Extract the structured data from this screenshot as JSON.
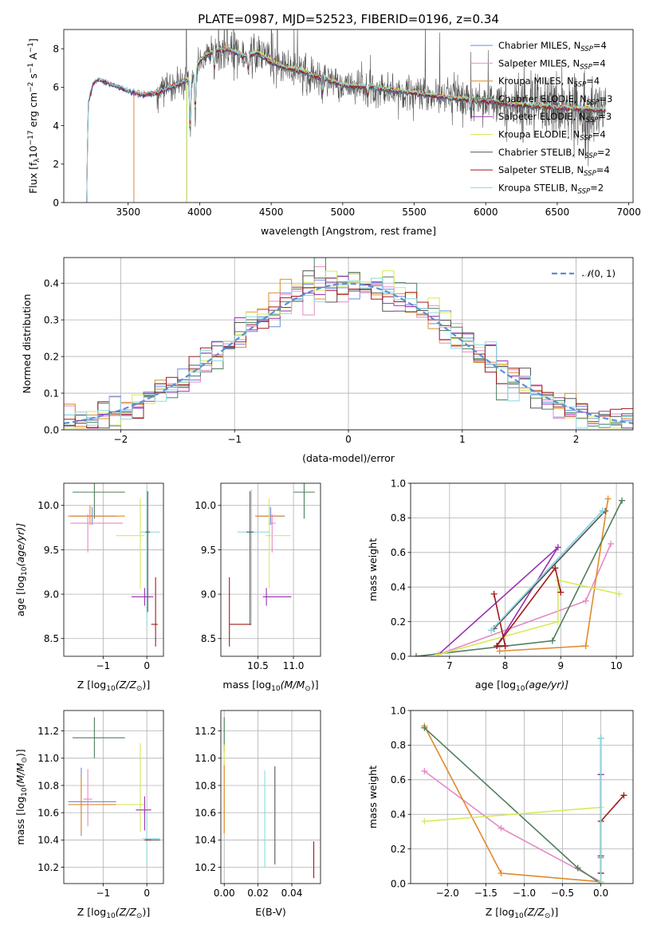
{
  "figure": {
    "title": "PLATE=0987, MJD=52523, FIBERID=0196, z=0.34"
  },
  "colors": {
    "Chabrier MILES": "#6a8bdf",
    "Salpeter MILES": "#e58ac5",
    "Kroupa MILES": "#e08a2c",
    "Chabrier ELODIE": "#4f7f5a",
    "Salpeter ELODIE": "#9b30b0",
    "Kroupa ELODIE": "#d6ea5a",
    "Chabrier STELIB": "#555555",
    "Salpeter STELIB": "#a11a1a",
    "Kroupa STELIB": "#8adbe0"
  },
  "chart_data": [
    {
      "id": "spectrum",
      "type": "line",
      "title": "PLATE=0987, MJD=52523, FIBERID=0196, z=0.34",
      "xlabel": "wavelength [Angstrom, rest frame]",
      "ylabel_parts": [
        "Flux [f",
        "λ",
        "10",
        "−17",
        " erg cm",
        "−2",
        " s",
        "−1",
        " A",
        "−1",
        "]"
      ],
      "xlim": [
        3050,
        7030
      ],
      "ylim": [
        0,
        9
      ],
      "xticks": [
        3500,
        4000,
        4500,
        5000,
        5500,
        6000,
        6500,
        7000
      ],
      "yticks": [
        0,
        2,
        4,
        6,
        8
      ],
      "legend_position": "upper-right",
      "legend": [
        {
          "label": "Chabrier MILES, N",
          "sub": "SSP",
          "tail": "=4",
          "key": "Chabrier MILES"
        },
        {
          "label": "Salpeter MILES, N",
          "sub": "SSP",
          "tail": "=4",
          "key": "Salpeter MILES"
        },
        {
          "label": "Kroupa MILES, N",
          "sub": "SSP",
          "tail": "=4",
          "key": "Kroupa MILES"
        },
        {
          "label": "Chabrier ELODIE, N",
          "sub": "SSP",
          "tail": "=3",
          "key": "Chabrier ELODIE"
        },
        {
          "label": "Salpeter ELODIE, N",
          "sub": "SSP",
          "tail": "=3",
          "key": "Salpeter ELODIE"
        },
        {
          "label": "Kroupa ELODIE, N",
          "sub": "SSP",
          "tail": "=4",
          "key": "Kroupa ELODIE"
        },
        {
          "label": "Chabrier STELIB, N",
          "sub": "SSP",
          "tail": "=2",
          "key": "Chabrier STELIB"
        },
        {
          "label": "Salpeter STELIB, N",
          "sub": "SSP",
          "tail": "=4",
          "key": "Salpeter STELIB"
        },
        {
          "label": "Kroupa STELIB, N",
          "sub": "SSP",
          "tail": "=2",
          "key": "Kroupa STELIB"
        }
      ],
      "data_range_x": [
        3210,
        6840
      ],
      "continuum_knots": [
        [
          3210,
          0
        ],
        [
          3220,
          5.2
        ],
        [
          3260,
          6.3
        ],
        [
          3300,
          6.4
        ],
        [
          3400,
          6.1
        ],
        [
          3500,
          5.8
        ],
        [
          3600,
          5.6
        ],
        [
          3700,
          5.7
        ],
        [
          3800,
          6.0
        ],
        [
          3900,
          6.3
        ],
        [
          3950,
          6.6
        ],
        [
          4000,
          7.4
        ],
        [
          4100,
          7.9
        ],
        [
          4200,
          8.0
        ],
        [
          4300,
          7.6
        ],
        [
          4400,
          7.8
        ],
        [
          4500,
          7.3
        ],
        [
          4600,
          7.0
        ],
        [
          4700,
          6.9
        ],
        [
          4800,
          6.6
        ],
        [
          4900,
          6.4
        ],
        [
          5000,
          6.1
        ],
        [
          5200,
          6.0
        ],
        [
          5400,
          5.8
        ],
        [
          5600,
          5.6
        ],
        [
          5800,
          5.4
        ],
        [
          6000,
          5.3
        ],
        [
          6200,
          5.1
        ],
        [
          6400,
          5.0
        ],
        [
          6600,
          4.9
        ],
        [
          6840,
          4.8
        ]
      ],
      "absorption_lines": [
        [
          3934,
          3.3
        ],
        [
          3969,
          2.7
        ],
        [
          4102,
          1.2
        ],
        [
          4340,
          1.0
        ],
        [
          4861,
          0.9
        ],
        [
          5175,
          0.6
        ],
        [
          5893,
          0.5
        ]
      ],
      "model_start_x": {
        "Salpeter MILES": 3540,
        "Kroupa MILES": 3540,
        "Chabrier ELODIE": 3910,
        "Kroupa ELODIE": 3910
      }
    },
    {
      "id": "residuals",
      "type": "histogram",
      "xlabel": "(data-model)/error",
      "ylabel": "Normed distribution",
      "xlim": [
        -2.5,
        2.5
      ],
      "ylim": [
        0,
        0.47
      ],
      "xticks": [
        -2,
        -1,
        0,
        1,
        2
      ],
      "yticks": [
        0.0,
        0.1,
        0.2,
        0.3,
        0.4
      ],
      "legend_position": "upper-right",
      "legend_pre": "𝒩",
      "legend_text": "(0, 1)",
      "bin_width": 0.1,
      "gaussian": {
        "mu": 0,
        "sigma": 1,
        "color": "#5b8fd6"
      }
    },
    {
      "id": "age-vs-Z",
      "type": "errorbar",
      "xlabel_pre": "Z [log",
      "xlabel_sub": "10",
      "xlabel_post": "(Z/Z",
      "xlabel_end": ")]",
      "ylabel_pre": "age  [log",
      "ylabel_sub": "10",
      "ylabel_post": "(age/yr)]",
      "xlim": [
        -1.9,
        0.38
      ],
      "ylim": [
        8.3,
        10.25
      ],
      "xticks": [
        -1,
        0
      ],
      "yticks": [
        8.5,
        9.0,
        9.5,
        10.0
      ],
      "points": [
        {
          "key": "Chabrier ELODIE",
          "x": -1.2,
          "xerr": [
            0.5,
            0.7
          ],
          "y": 10.15,
          "yerr": [
            0.3,
            0.1
          ]
        },
        {
          "key": "Chabrier MILES",
          "x": -1.25,
          "xerr": [
            0.5,
            0.55
          ],
          "y": 9.88,
          "yerr": [
            0.1,
            0.1
          ]
        },
        {
          "key": "Kroupa MILES",
          "x": -1.3,
          "xerr": [
            0.5,
            0.8
          ],
          "y": 9.88,
          "yerr": [
            0.1,
            0.12
          ]
        },
        {
          "key": "Salpeter MILES",
          "x": -1.35,
          "xerr": [
            0.4,
            0.8
          ],
          "y": 9.8,
          "yerr": [
            0.33,
            0.1
          ]
        },
        {
          "key": "Kroupa ELODIE",
          "x": -0.15,
          "xerr": [
            0.55,
            0.1
          ],
          "y": 9.66,
          "yerr": [
            0.6,
            0.42
          ]
        },
        {
          "key": "Kroupa STELIB",
          "x": 0.0,
          "xerr": [
            0.15,
            0.3
          ],
          "y": 9.7,
          "yerr": [
            1.05,
            0.48
          ]
        },
        {
          "key": "Chabrier STELIB",
          "x": 0.02,
          "xerr": [
            0.05,
            0.05
          ],
          "y": 9.7,
          "yerr": [
            0.9,
            0.46
          ]
        },
        {
          "key": "Salpeter ELODIE",
          "x": -0.05,
          "xerr": [
            0.3,
            0.2
          ],
          "y": 8.97,
          "yerr": [
            0.1,
            0.1
          ]
        },
        {
          "key": "Salpeter STELIB",
          "x": 0.2,
          "xerr": [
            0.1,
            0.05
          ],
          "y": 8.66,
          "yerr": [
            0.25,
            0.53
          ]
        }
      ]
    },
    {
      "id": "age-vs-mass",
      "type": "errorbar",
      "xlabel_pre": "mass [log",
      "xlabel_sub": "10",
      "xlabel_post": "(M/M",
      "xlabel_end": ")]",
      "xlim": [
        9.98,
        11.38
      ],
      "ylim": [
        8.3,
        10.25
      ],
      "xticks": [
        10.5,
        11.0
      ],
      "yticks": [
        8.5,
        9.0,
        9.5,
        10.0
      ],
      "points": [
        {
          "key": "Chabrier ELODIE",
          "x": 11.15,
          "xerr": [
            0.15,
            0.15
          ],
          "y": 10.15,
          "yerr": [
            0.3,
            0.1
          ]
        },
        {
          "key": "Chabrier MILES",
          "x": 10.68,
          "xerr": [
            0.2,
            0.2
          ],
          "y": 9.88,
          "yerr": [
            0.1,
            0.1
          ]
        },
        {
          "key": "Kroupa MILES",
          "x": 10.66,
          "xerr": [
            0.2,
            0.2
          ],
          "y": 9.88,
          "yerr": [
            0.1,
            0.12
          ]
        },
        {
          "key": "Salpeter MILES",
          "x": 10.7,
          "xerr": [
            0.05,
            0.05
          ],
          "y": 9.8,
          "yerr": [
            0.33,
            0.1
          ]
        },
        {
          "key": "Kroupa ELODIE",
          "x": 10.66,
          "xerr": [
            0.05,
            0.3
          ],
          "y": 9.66,
          "yerr": [
            0.6,
            0.42
          ]
        },
        {
          "key": "Kroupa STELIB",
          "x": 10.41,
          "xerr": [
            0.2,
            0.25
          ],
          "y": 9.7,
          "yerr": [
            1.05,
            0.48
          ]
        },
        {
          "key": "Chabrier STELIB",
          "x": 10.39,
          "xerr": [
            0.05,
            0.05
          ],
          "y": 9.7,
          "yerr": [
            1.05,
            0.46
          ]
        },
        {
          "key": "Salpeter ELODIE",
          "x": 10.62,
          "xerr": [
            0.05,
            0.35
          ],
          "y": 8.97,
          "yerr": [
            0.1,
            0.1
          ]
        },
        {
          "key": "Salpeter STELIB",
          "x": 10.1,
          "xerr": [
            0.0,
            0.3
          ],
          "y": 8.66,
          "yerr": [
            0.25,
            0.53
          ]
        }
      ]
    },
    {
      "id": "massweight-vs-age",
      "type": "line",
      "xlabel_pre": "age  [log",
      "xlabel_sub": "10",
      "xlabel_post": "(age/yr)]",
      "ylabel": "mass weight",
      "xlim": [
        6.3,
        10.3
      ],
      "ylim": [
        0,
        1
      ],
      "xticks": [
        7,
        8,
        9,
        10
      ],
      "yticks": [
        0.0,
        0.2,
        0.4,
        0.6,
        0.8,
        1.0
      ],
      "series": [
        {
          "key": "Chabrier MILES",
          "x": [
            7.75,
            9.75
          ],
          "y": [
            0.15,
            0.84
          ]
        },
        {
          "key": "Salpeter MILES",
          "x": [
            6.8,
            9.45,
            9.9
          ],
          "y": [
            0.01,
            0.32,
            0.65
          ]
        },
        {
          "key": "Kroupa MILES",
          "x": [
            7.9,
            9.45,
            9.85
          ],
          "y": [
            0.03,
            0.06,
            0.91
          ]
        },
        {
          "key": "Chabrier ELODIE",
          "x": [
            6.4,
            8.85,
            10.1
          ],
          "y": [
            0.0,
            0.09,
            0.9
          ]
        },
        {
          "key": "Salpeter ELODIE",
          "x": [
            6.8,
            8.95,
            7.85,
            8.0
          ],
          "y": [
            0.01,
            0.63,
            0.06,
            0.06
          ]
        },
        {
          "key": "Kroupa ELODIE",
          "x": [
            6.8,
            8.95,
            8.95,
            10.05
          ],
          "y": [
            0.01,
            0.2,
            0.44,
            0.36
          ]
        },
        {
          "key": "Chabrier STELIB",
          "x": [
            7.8,
            9.8
          ],
          "y": [
            0.16,
            0.84
          ]
        },
        {
          "key": "Salpeter STELIB",
          "x": [
            7.8,
            8.0,
            7.85,
            8.9,
            9.0
          ],
          "y": [
            0.36,
            0.06,
            0.06,
            0.51,
            0.37
          ]
        },
        {
          "key": "Kroupa STELIB",
          "x": [
            7.75,
            9.75
          ],
          "y": [
            0.15,
            0.84
          ]
        }
      ]
    },
    {
      "id": "mass-vs-Z",
      "type": "errorbar",
      "xlabel_pre": "Z [log",
      "xlabel_sub": "10",
      "xlabel_post": "(Z/Z",
      "xlabel_end": ")]",
      "ylabel_pre": "mass [log",
      "ylabel_sub": "10",
      "ylabel_post": "(M/M",
      "ylabel_end": ")]",
      "xlim": [
        -1.9,
        0.38
      ],
      "ylim": [
        10.08,
        11.35
      ],
      "xticks": [
        -1,
        0
      ],
      "yticks": [
        10.2,
        10.4,
        10.6,
        10.8,
        11.0,
        11.2
      ],
      "points": [
        {
          "key": "Chabrier ELODIE",
          "x": -1.2,
          "xerr": [
            0.5,
            0.7
          ],
          "y": 11.15,
          "yerr": [
            0.15,
            0.15
          ]
        },
        {
          "key": "Chabrier MILES",
          "x": -1.5,
          "xerr": [
            0.3,
            0.8
          ],
          "y": 10.68,
          "yerr": [
            0.25,
            0.25
          ]
        },
        {
          "key": "Kroupa MILES",
          "x": -1.5,
          "xerr": [
            0.3,
            0.8
          ],
          "y": 10.66,
          "yerr": [
            0.21,
            0.21
          ]
        },
        {
          "key": "Salpeter MILES",
          "x": -1.35,
          "xerr": [
            0.1,
            0.1
          ],
          "y": 10.7,
          "yerr": [
            0.2,
            0.22
          ]
        },
        {
          "key": "Kroupa ELODIE",
          "x": -0.15,
          "xerr": [
            0.55,
            0.1
          ],
          "y": 10.66,
          "yerr": [
            0.2,
            0.45
          ]
        },
        {
          "key": "Salpeter ELODIE",
          "x": -0.05,
          "xerr": [
            0.2,
            0.15
          ],
          "y": 10.62,
          "yerr": [
            0.15,
            0.1
          ]
        },
        {
          "key": "Kroupa STELIB",
          "x": 0.0,
          "xerr": [
            0.1,
            0.3
          ],
          "y": 10.41,
          "yerr": [
            0.2,
            0.2
          ]
        },
        {
          "key": "Chabrier STELIB",
          "x": 0.05,
          "xerr": [
            0.1,
            0.25
          ],
          "y": 10.4,
          "yerr": [
            0.0,
            0.0
          ]
        },
        {
          "key": "Salpeter STELIB",
          "x": 0.05,
          "xerr": [
            0.1,
            0.05
          ],
          "y": 10.4,
          "yerr": [
            0.0,
            0.0
          ]
        }
      ]
    },
    {
      "id": "mass-vs-EBV",
      "type": "errorbar",
      "xlabel": "E(B-V)",
      "xlim": [
        -0.002,
        0.057
      ],
      "ylim": [
        10.08,
        11.35
      ],
      "xticks": [
        0.0,
        0.02,
        0.04
      ],
      "tick_labels": [
        "0.00",
        "0.02",
        "0.04"
      ],
      "yticks": [
        10.2,
        10.4,
        10.6,
        10.8,
        11.0,
        11.2
      ],
      "points": [
        {
          "key": "Chabrier ELODIE",
          "x": 0.0,
          "y": 11.05,
          "yerr": [
            0.0,
            0.25
          ]
        },
        {
          "key": "Kroupa ELODIE",
          "x": 0.0,
          "y": 10.75,
          "yerr": [
            0.3,
            0.35
          ]
        },
        {
          "key": "Kroupa MILES",
          "x": 0.0,
          "y": 10.55,
          "yerr": [
            0.1,
            0.4
          ]
        },
        {
          "key": "Kroupa STELIB",
          "x": 0.024,
          "y": 10.55,
          "yerr": [
            0.35,
            0.36
          ]
        },
        {
          "key": "Chabrier STELIB",
          "x": 0.03,
          "y": 10.58,
          "yerr": [
            0.36,
            0.36
          ]
        },
        {
          "key": "Salpeter STELIB",
          "x": 0.053,
          "y": 10.25,
          "yerr": [
            0.13,
            0.14
          ]
        }
      ]
    },
    {
      "id": "massweight-vs-Z",
      "type": "line",
      "xlabel_pre": "Z [log",
      "xlabel_sub": "10",
      "xlabel_post": "(Z/Z",
      "xlabel_end": ")]",
      "ylabel": "mass weight",
      "xlim": [
        -2.48,
        0.42
      ],
      "ylim": [
        0,
        1
      ],
      "xticks": [
        -2.0,
        -1.5,
        -1.0,
        -0.5,
        0.0
      ],
      "tick_labels": [
        "−2.0",
        "−1.5",
        "−1.0",
        "−0.5",
        "0.0"
      ],
      "yticks": [
        0.0,
        0.2,
        0.4,
        0.6,
        0.8,
        1.0
      ],
      "series": [
        {
          "key": "Chabrier MILES",
          "x": [
            0.0,
            0.0
          ],
          "y": [
            0.15,
            0.84
          ]
        },
        {
          "key": "Salpeter MILES",
          "x": [
            -2.3,
            -1.3,
            0.0,
            0.0
          ],
          "y": [
            0.65,
            0.32,
            0.01,
            0.63
          ]
        },
        {
          "key": "Kroupa MILES",
          "x": [
            -2.3,
            -1.3,
            0.0
          ],
          "y": [
            0.91,
            0.06,
            0.01
          ]
        },
        {
          "key": "Chabrier ELODIE",
          "x": [
            -2.3,
            -0.3,
            0.0
          ],
          "y": [
            0.9,
            0.09,
            0.0
          ]
        },
        {
          "key": "Salpeter ELODIE",
          "x": [
            0.0,
            0.0
          ],
          "y": [
            0.63,
            0.06
          ]
        },
        {
          "key": "Kroupa ELODIE",
          "x": [
            -2.3,
            0.0,
            0.0
          ],
          "y": [
            0.36,
            0.44,
            0.01
          ]
        },
        {
          "key": "Chabrier STELIB",
          "x": [
            0.0,
            0.0
          ],
          "y": [
            0.16,
            0.84
          ]
        },
        {
          "key": "Salpeter STELIB",
          "x": [
            0.0,
            0.0,
            0.3
          ],
          "y": [
            0.06,
            0.36,
            0.51
          ]
        },
        {
          "key": "Kroupa STELIB",
          "x": [
            0.0,
            0.0
          ],
          "y": [
            0.0,
            0.84
          ]
        }
      ]
    }
  ]
}
